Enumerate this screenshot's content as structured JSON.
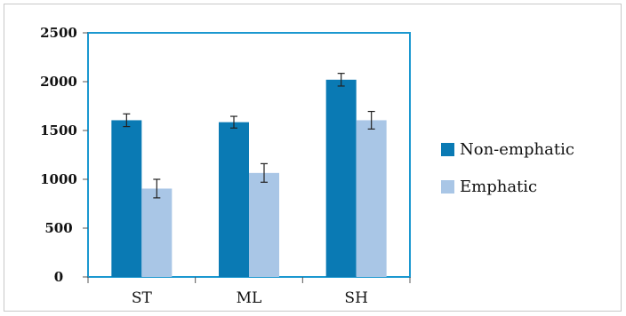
{
  "chart_data": {
    "type": "bar",
    "categories": [
      "ST",
      "ML",
      "SH"
    ],
    "series": [
      {
        "name": "Non-emphatic",
        "values": [
          1605,
          1585,
          2020
        ],
        "errors": [
          65,
          60,
          65
        ],
        "color": "#0a7ab4"
      },
      {
        "name": "Emphatic",
        "values": [
          905,
          1065,
          1605
        ],
        "errors": [
          95,
          95,
          90
        ],
        "color": "#a9c6e6"
      }
    ],
    "yticks": [
      0,
      500,
      1000,
      1500,
      2000,
      2500
    ],
    "ytick_labels": [
      "0",
      "500",
      "1000",
      "1500",
      "2000",
      "2500"
    ],
    "ylim": [
      0,
      2500
    ],
    "legend_position": "right",
    "grid": false,
    "plot_border_color": "#1b98d0"
  }
}
